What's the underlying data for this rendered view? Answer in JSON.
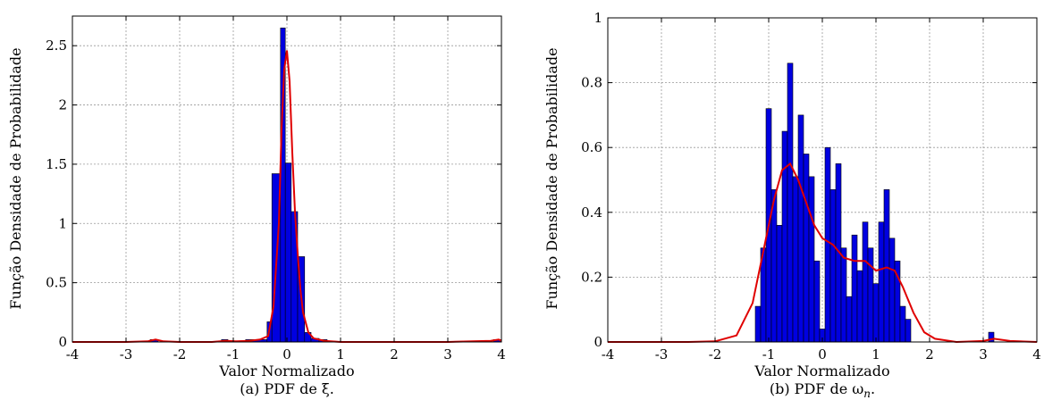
{
  "chart_data": [
    {
      "type": "histogram",
      "caption": "(a) PDF de ξ.",
      "xlabel": "Valor Normalizado",
      "ylabel": "Função Densidade de Probabilidade",
      "xlim": [
        -4,
        4
      ],
      "ylim": [
        0,
        2.75
      ],
      "xticks": [
        -4,
        -3,
        -2,
        -1,
        0,
        1,
        2,
        3,
        4
      ],
      "xtick_labels": [
        "-4",
        "-3",
        "-2",
        "-1",
        "0",
        "1",
        "2",
        "3",
        "4"
      ],
      "yticks": [
        0,
        0.5,
        1,
        1.5,
        2,
        2.5
      ],
      "ytick_labels": [
        "0",
        "0.5",
        "1",
        "1.5",
        "2",
        "2.5"
      ],
      "grid": true,
      "bar_color": "#0000e0",
      "curve_color": "#e00000",
      "bins": [
        {
          "x0": -2.55,
          "x1": -2.4,
          "value": 0.02
        },
        {
          "x0": -1.22,
          "x1": -1.1,
          "value": 0.02
        },
        {
          "x0": -0.87,
          "x1": -0.77,
          "value": 0.01
        },
        {
          "x0": -0.77,
          "x1": -0.37,
          "value": 0.02
        },
        {
          "x0": -0.37,
          "x1": -0.28,
          "value": 0.17
        },
        {
          "x0": -0.28,
          "x1": -0.12,
          "value": 1.42
        },
        {
          "x0": -0.12,
          "x1": -0.03,
          "value": 2.65
        },
        {
          "x0": -0.03,
          "x1": 0.08,
          "value": 1.51
        },
        {
          "x0": 0.08,
          "x1": 0.2,
          "value": 1.1
        },
        {
          "x0": 0.2,
          "x1": 0.33,
          "value": 0.72
        },
        {
          "x0": 0.33,
          "x1": 0.45,
          "value": 0.08
        },
        {
          "x0": 0.45,
          "x1": 0.6,
          "value": 0.03
        },
        {
          "x0": 0.6,
          "x1": 0.75,
          "value": 0.02
        },
        {
          "x0": 3.85,
          "x1": 4.0,
          "value": 0.02
        }
      ],
      "curve": {
        "x": [
          -4,
          -3,
          -2.6,
          -2.45,
          -2.3,
          -2,
          -1.4,
          -1.15,
          -0.95,
          -0.7,
          -0.5,
          -0.35,
          -0.25,
          -0.15,
          -0.1,
          -0.05,
          0,
          0.05,
          0.1,
          0.15,
          0.2,
          0.25,
          0.3,
          0.4,
          0.5,
          0.7,
          1.0,
          2.0,
          3.0,
          3.8,
          3.95,
          4
        ],
        "y": [
          0,
          0,
          0.005,
          0.02,
          0.005,
          0,
          0,
          0.01,
          0.005,
          0.01,
          0.02,
          0.05,
          0.3,
          1.0,
          1.8,
          2.3,
          2.46,
          2.2,
          1.6,
          1.1,
          0.75,
          0.45,
          0.25,
          0.08,
          0.03,
          0.01,
          0,
          0,
          0,
          0.01,
          0.02,
          0.01
        ]
      }
    },
    {
      "type": "histogram",
      "caption": "(b) PDF de ω",
      "caption_subscript": "n",
      "caption_suffix": ".",
      "xlabel": "Valor Normalizado",
      "ylabel": "Função Densidade de Probabilidade",
      "xlim": [
        -4,
        4
      ],
      "ylim": [
        0,
        1
      ],
      "xticks": [
        -4,
        -3,
        -2,
        -1,
        0,
        1,
        2,
        3,
        4
      ],
      "xtick_labels": [
        "-4",
        "-3",
        "-2",
        "-1",
        "0",
        "1",
        "2",
        "3",
        "4"
      ],
      "yticks": [
        0,
        0.2,
        0.4,
        0.6,
        0.8,
        1
      ],
      "ytick_labels": [
        "0",
        "0.2",
        "0.4",
        "0.6",
        "0.8",
        "1"
      ],
      "grid": true,
      "bar_color": "#0000e0",
      "curve_color": "#e00000",
      "bins": [
        {
          "x0": -1.25,
          "x1": -1.15,
          "value": 0.11
        },
        {
          "x0": -1.15,
          "x1": -1.05,
          "value": 0.29
        },
        {
          "x0": -1.05,
          "x1": -0.95,
          "value": 0.72
        },
        {
          "x0": -0.95,
          "x1": -0.85,
          "value": 0.47
        },
        {
          "x0": -0.85,
          "x1": -0.75,
          "value": 0.36
        },
        {
          "x0": -0.75,
          "x1": -0.65,
          "value": 0.65
        },
        {
          "x0": -0.65,
          "x1": -0.55,
          "value": 0.86
        },
        {
          "x0": -0.55,
          "x1": -0.45,
          "value": 0.51
        },
        {
          "x0": -0.45,
          "x1": -0.35,
          "value": 0.7
        },
        {
          "x0": -0.35,
          "x1": -0.25,
          "value": 0.58
        },
        {
          "x0": -0.25,
          "x1": -0.15,
          "value": 0.51
        },
        {
          "x0": -0.15,
          "x1": -0.05,
          "value": 0.25
        },
        {
          "x0": -0.05,
          "x1": 0.05,
          "value": 0.04
        },
        {
          "x0": 0.05,
          "x1": 0.15,
          "value": 0.6
        },
        {
          "x0": 0.15,
          "x1": 0.25,
          "value": 0.47
        },
        {
          "x0": 0.25,
          "x1": 0.35,
          "value": 0.55
        },
        {
          "x0": 0.35,
          "x1": 0.45,
          "value": 0.29
        },
        {
          "x0": 0.45,
          "x1": 0.55,
          "value": 0.14
        },
        {
          "x0": 0.55,
          "x1": 0.65,
          "value": 0.33
        },
        {
          "x0": 0.65,
          "x1": 0.75,
          "value": 0.22
        },
        {
          "x0": 0.75,
          "x1": 0.85,
          "value": 0.37
        },
        {
          "x0": 0.85,
          "x1": 0.95,
          "value": 0.29
        },
        {
          "x0": 0.95,
          "x1": 1.05,
          "value": 0.18
        },
        {
          "x0": 1.05,
          "x1": 1.15,
          "value": 0.37
        },
        {
          "x0": 1.15,
          "x1": 1.25,
          "value": 0.47
        },
        {
          "x0": 1.25,
          "x1": 1.35,
          "value": 0.32
        },
        {
          "x0": 1.35,
          "x1": 1.45,
          "value": 0.25
        },
        {
          "x0": 1.45,
          "x1": 1.55,
          "value": 0.11
        },
        {
          "x0": 1.55,
          "x1": 1.65,
          "value": 0.07
        },
        {
          "x0": 3.1,
          "x1": 3.2,
          "value": 0.03
        }
      ],
      "curve": {
        "x": [
          -4,
          -2.5,
          -2.0,
          -1.6,
          -1.3,
          -1.1,
          -0.9,
          -0.75,
          -0.6,
          -0.45,
          -0.3,
          -0.15,
          0,
          0.2,
          0.4,
          0.6,
          0.8,
          1.0,
          1.2,
          1.35,
          1.5,
          1.7,
          1.9,
          2.1,
          2.5,
          3.0,
          3.2,
          3.5,
          4
        ],
        "y": [
          0,
          0,
          0.002,
          0.02,
          0.12,
          0.28,
          0.44,
          0.53,
          0.55,
          0.5,
          0.43,
          0.36,
          0.32,
          0.3,
          0.26,
          0.25,
          0.25,
          0.22,
          0.23,
          0.22,
          0.17,
          0.09,
          0.03,
          0.01,
          0,
          0.003,
          0.01,
          0.003,
          0
        ]
      }
    }
  ]
}
